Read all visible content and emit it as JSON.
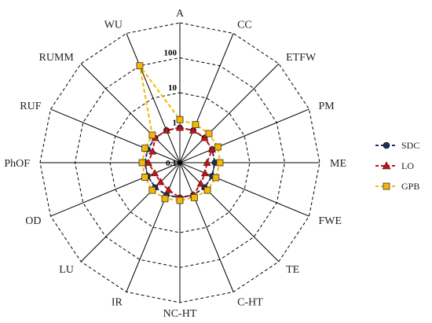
{
  "chart_data": {
    "type": "radar",
    "scale": "log",
    "rlim": [
      0.1,
      1000
    ],
    "ticks": [
      {
        "value": 0.1,
        "label": "0.1"
      },
      {
        "value": 1,
        "label": "1"
      },
      {
        "value": 10,
        "label": "10"
      },
      {
        "value": 100,
        "label": "100"
      }
    ],
    "grid": "dashed concentric polygons",
    "legend_position": "right",
    "categories": [
      "A",
      "CC",
      "ETFW",
      "PM",
      "ME",
      "FWE",
      "TE",
      "C-HT",
      "NC-HT",
      "IR",
      "LU",
      "OD",
      "PhOF",
      "RUF",
      "RUMM",
      "WU"
    ],
    "series": [
      {
        "name": "SDC",
        "color": "#1f2d5c",
        "marker": "circle",
        "values": [
          1,
          1,
          1,
          1,
          1,
          1,
          1,
          1,
          1,
          1,
          1,
          1,
          1,
          1,
          1,
          1
        ]
      },
      {
        "name": "LO",
        "color": "#c0141c",
        "marker": "triangle",
        "values": [
          1,
          1,
          1,
          1,
          0.6,
          0.6,
          0.7,
          1,
          1,
          0.7,
          0.6,
          0.6,
          0.8,
          0.7,
          1,
          1
        ]
      },
      {
        "name": "GPB",
        "color": "#f5b800",
        "marker": "square",
        "values": [
          1.7,
          1.5,
          1.5,
          1.5,
          1.4,
          1.3,
          1.3,
          1.2,
          1.2,
          1.3,
          1.3,
          1.2,
          1.2,
          1.2,
          1.3,
          100
        ]
      }
    ]
  }
}
